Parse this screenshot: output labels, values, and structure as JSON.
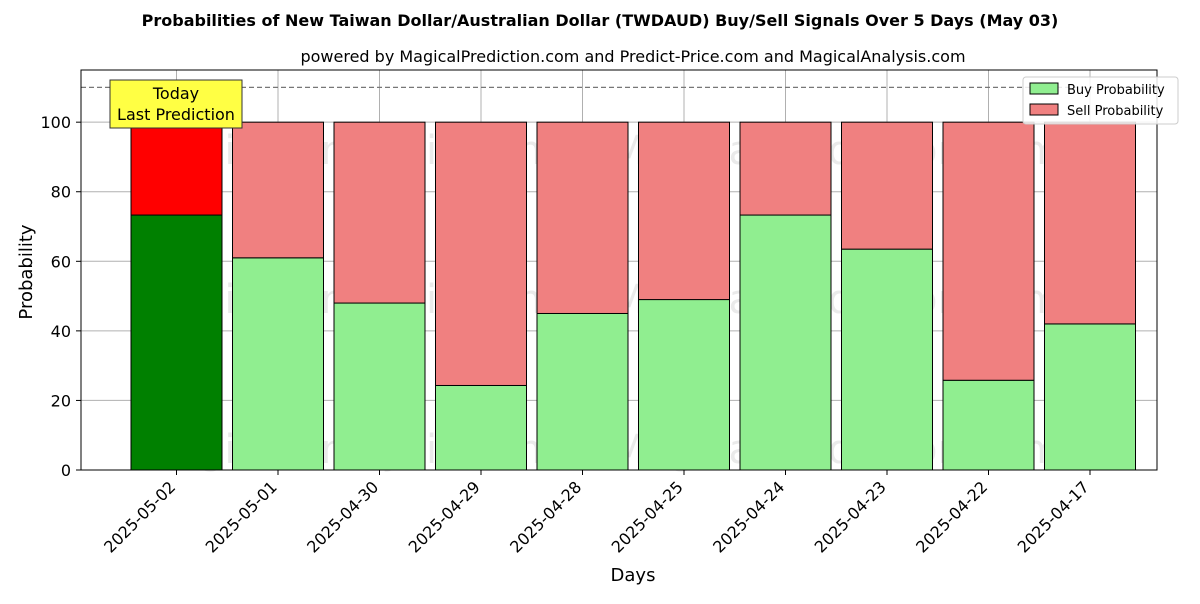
{
  "chart_data": {
    "type": "bar",
    "stacked": true,
    "title": "Probabilities of New Taiwan Dollar/Australian Dollar (TWDAUD) Buy/Sell Signals Over 5 Days (May 03)",
    "subtitle": "powered by MagicalPrediction.com and Predict-Price.com and MagicalAnalysis.com",
    "xlabel": "Days",
    "ylabel": "Probability",
    "ylim": [
      0,
      115
    ],
    "yticks": [
      0,
      20,
      40,
      60,
      80,
      100
    ],
    "reference_line": 110,
    "grid": true,
    "legend_position": "top-right",
    "categories": [
      "2025-05-02",
      "2025-05-01",
      "2025-04-30",
      "2025-04-29",
      "2025-04-28",
      "2025-04-25",
      "2025-04-24",
      "2025-04-23",
      "2025-04-22",
      "2025-04-17"
    ],
    "series": [
      {
        "name": "Buy Probability",
        "values": [
          73.3,
          61.0,
          48.0,
          24.3,
          45.0,
          49.0,
          73.3,
          63.5,
          25.8,
          42.0
        ]
      },
      {
        "name": "Sell Probability",
        "values": [
          26.7,
          39.0,
          52.0,
          75.7,
          55.0,
          51.0,
          26.7,
          36.5,
          74.2,
          58.0
        ]
      }
    ],
    "colors": {
      "buy": "#90ee90",
      "sell": "#f08080",
      "today_buy": "#008000",
      "today_sell": "#ff0000",
      "annotation_bg": "#ffff44"
    },
    "annotation": {
      "line1": "Today",
      "line2": "Last Prediction",
      "category": "2025-05-02"
    },
    "watermarks": [
      "MagicalAnalysis.com",
      "MagicalPrediction.com"
    ]
  }
}
